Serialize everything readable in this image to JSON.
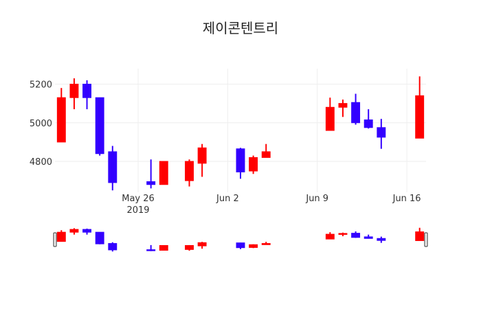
{
  "chart_data": {
    "type": "candlestick",
    "title": "제이콘텐트리",
    "increasing_color": "#ff0000",
    "decreasing_color": "#3300ff",
    "y_ticks": [
      4800,
      5000,
      5200
    ],
    "y_tick_labels": [
      "4800",
      "5000",
      "5200"
    ],
    "x_ticks": [
      "2019-05-26",
      "2019-06-02",
      "2019-06-09",
      "2019-06-16"
    ],
    "x_tick_labels": [
      "May 26",
      "Jun 2",
      "Jun 9",
      "Jun 16"
    ],
    "x_year_label": "2019",
    "y_range": [
      4640,
      5280
    ],
    "x_range": [
      "2019-05-20",
      "2019-06-17"
    ],
    "grid": true,
    "rangeslider": true,
    "candles": [
      {
        "date": "2019-05-20",
        "open": 4900,
        "high": 5180,
        "low": 4900,
        "close": 5130
      },
      {
        "date": "2019-05-21",
        "open": 5130,
        "high": 5230,
        "low": 5070,
        "close": 5200
      },
      {
        "date": "2019-05-22",
        "open": 5200,
        "high": 5220,
        "low": 5070,
        "close": 5130
      },
      {
        "date": "2019-05-23",
        "open": 5130,
        "high": 5130,
        "low": 4830,
        "close": 4840
      },
      {
        "date": "2019-05-24",
        "open": 4850,
        "high": 4880,
        "low": 4650,
        "close": 4690
      },
      {
        "date": "2019-05-27",
        "open": 4695,
        "high": 4810,
        "low": 4660,
        "close": 4680
      },
      {
        "date": "2019-05-28",
        "open": 4680,
        "high": 4800,
        "low": 4680,
        "close": 4800
      },
      {
        "date": "2019-05-30",
        "open": 4700,
        "high": 4810,
        "low": 4670,
        "close": 4800
      },
      {
        "date": "2019-05-31",
        "open": 4790,
        "high": 4890,
        "low": 4720,
        "close": 4870
      },
      {
        "date": "2019-06-03",
        "open": 4865,
        "high": 4870,
        "low": 4710,
        "close": 4745
      },
      {
        "date": "2019-06-04",
        "open": 4750,
        "high": 4830,
        "low": 4735,
        "close": 4820
      },
      {
        "date": "2019-06-05",
        "open": 4820,
        "high": 4890,
        "low": 4820,
        "close": 4850
      },
      {
        "date": "2019-06-10",
        "open": 4960,
        "high": 5130,
        "low": 4960,
        "close": 5080
      },
      {
        "date": "2019-06-11",
        "open": 5080,
        "high": 5120,
        "low": 5030,
        "close": 5100
      },
      {
        "date": "2019-06-12",
        "open": 5105,
        "high": 5150,
        "low": 4990,
        "close": 5000
      },
      {
        "date": "2019-06-13",
        "open": 5015,
        "high": 5070,
        "low": 4970,
        "close": 4975
      },
      {
        "date": "2019-06-14",
        "open": 4975,
        "high": 5020,
        "low": 4865,
        "close": 4925
      },
      {
        "date": "2019-06-17",
        "open": 4920,
        "high": 5240,
        "low": 4920,
        "close": 5140
      }
    ]
  }
}
